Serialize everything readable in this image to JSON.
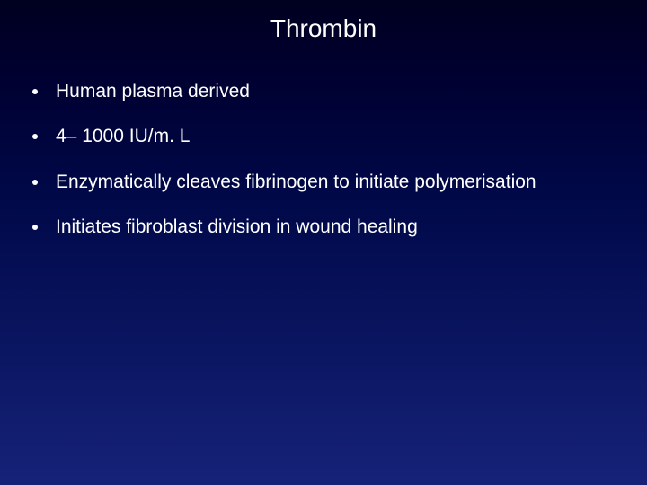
{
  "slide": {
    "title": "Thrombin",
    "title_fontsize": 28,
    "title_color": "#ffffff",
    "background_gradient_top": "#000020",
    "background_gradient_bottom": "#162278",
    "bullets": [
      {
        "text": "Human plasma derived"
      },
      {
        "text": "4– 1000 IU/m. L"
      },
      {
        "text": "Enzymatically cleaves fibrinogen to initiate polymerisation"
      },
      {
        "text": "Initiates fibroblast division in wound healing"
      }
    ],
    "bullet_fontsize": 21,
    "bullet_color": "#ffffff",
    "bullet_dot_color": "#ffffff"
  }
}
